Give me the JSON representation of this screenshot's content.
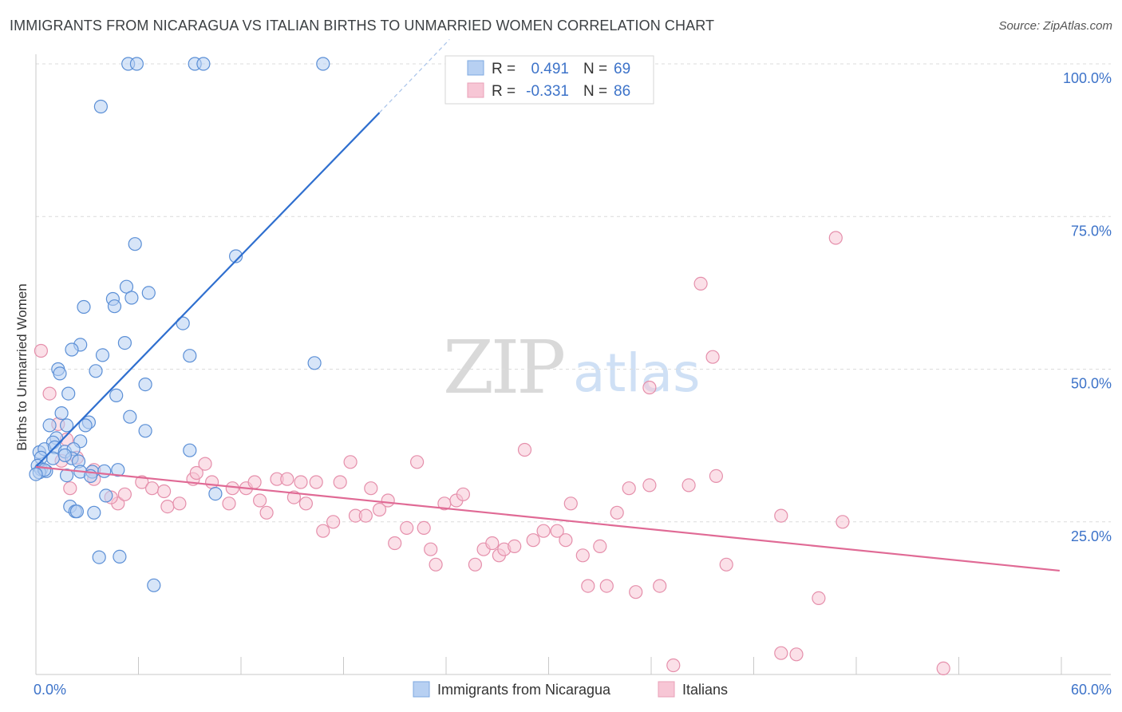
{
  "header": {
    "title": "IMMIGRANTS FROM NICARAGUA VS ITALIAN BIRTHS TO UNMARRIED WOMEN CORRELATION CHART",
    "source": "Source: ZipAtlas.com"
  },
  "watermark": {
    "zip": "ZIP",
    "atlas": "atlas"
  },
  "colors": {
    "blue_fill": "#b7d0f2",
    "blue_stroke": "#5b8fd6",
    "blue_line": "#2f6fcf",
    "pink_fill": "#f7c6d5",
    "pink_stroke": "#e58fab",
    "pink_line": "#e06a95",
    "tick_text": "#3d73c9",
    "grid": "#dcdcdc"
  },
  "chart_data": {
    "type": "scatter",
    "title": "IMMIGRANTS FROM NICARAGUA VS ITALIAN BIRTHS TO UNMARRIED WOMEN CORRELATION CHART",
    "xlabel": "",
    "ylabel": "Births to Unmarried Women",
    "xlim": [
      0,
      60
    ],
    "ylim": [
      0,
      105
    ],
    "x_tick_labels": [
      "0.0%",
      "60.0%"
    ],
    "y_ticks": [
      25,
      50,
      75,
      100
    ],
    "y_tick_labels": [
      "25.0%",
      "50.0%",
      "75.0%",
      "100.0%"
    ],
    "grid": true,
    "legend_position": "top-center",
    "legend": [
      {
        "r_label": "R =",
        "r_value": "0.491",
        "n_label": "N =",
        "n_value": "69"
      },
      {
        "r_label": "R =",
        "r_value": "-0.331",
        "n_label": "N =",
        "n_value": "86"
      }
    ],
    "bottom_legend": [
      "Immigrants from Nicaragua",
      "Italians"
    ],
    "series": [
      {
        "name": "Immigrants from Nicaragua",
        "points": [
          [
            5.4,
            100
          ],
          [
            5.9,
            100
          ],
          [
            9.3,
            100
          ],
          [
            9.8,
            100
          ],
          [
            16.8,
            100
          ],
          [
            3.8,
            93
          ],
          [
            5.8,
            70.5
          ],
          [
            11.7,
            68.5
          ],
          [
            5.3,
            63.5
          ],
          [
            6.6,
            62.5
          ],
          [
            4.5,
            61.5
          ],
          [
            5.6,
            61.7
          ],
          [
            2.8,
            60.2
          ],
          [
            4.6,
            60.3
          ],
          [
            8.6,
            57.5
          ],
          [
            2.6,
            54
          ],
          [
            5.2,
            54.3
          ],
          [
            2.1,
            53.2
          ],
          [
            3.9,
            52.3
          ],
          [
            9.0,
            52.2
          ],
          [
            16.3,
            51
          ],
          [
            1.3,
            50
          ],
          [
            1.4,
            49.3
          ],
          [
            3.5,
            49.7
          ],
          [
            6.4,
            47.5
          ],
          [
            1.9,
            46
          ],
          [
            4.7,
            45.7
          ],
          [
            1.5,
            42.8
          ],
          [
            5.5,
            42.2
          ],
          [
            3.1,
            41.3
          ],
          [
            1.8,
            40.8
          ],
          [
            2.9,
            40.8
          ],
          [
            0.8,
            40.8
          ],
          [
            6.4,
            39.9
          ],
          [
            1.2,
            38.7
          ],
          [
            1.0,
            38
          ],
          [
            2.6,
            38.2
          ],
          [
            0.2,
            36.4
          ],
          [
            0.5,
            36.9
          ],
          [
            1.1,
            37.2
          ],
          [
            1.7,
            36.5
          ],
          [
            2.2,
            36.9
          ],
          [
            9.0,
            36.7
          ],
          [
            0.3,
            35.5
          ],
          [
            1.0,
            35.4
          ],
          [
            2.1,
            35.4
          ],
          [
            2.5,
            34.9
          ],
          [
            1.7,
            35.9
          ],
          [
            0.1,
            34.2
          ],
          [
            0.3,
            33.6
          ],
          [
            0.6,
            33.3
          ],
          [
            0.2,
            33.1
          ],
          [
            0.5,
            33.5
          ],
          [
            4.8,
            33.5
          ],
          [
            2.6,
            33.2
          ],
          [
            3.3,
            33.2
          ],
          [
            4.0,
            33.3
          ],
          [
            0,
            32.8
          ],
          [
            1.8,
            32.6
          ],
          [
            3.2,
            32.5
          ],
          [
            10.5,
            29.6
          ],
          [
            4.1,
            29.3
          ],
          [
            2.0,
            27.5
          ],
          [
            2.3,
            26.7
          ],
          [
            2.4,
            26.7
          ],
          [
            3.4,
            26.5
          ],
          [
            3.7,
            19.2
          ],
          [
            4.9,
            19.3
          ],
          [
            6.9,
            14.6
          ]
        ]
      },
      {
        "name": "Italians",
        "points": [
          [
            46.8,
            71.5
          ],
          [
            38.9,
            64
          ],
          [
            39.6,
            52
          ],
          [
            35.9,
            47
          ],
          [
            0.3,
            53
          ],
          [
            0.8,
            46
          ],
          [
            1.3,
            41
          ],
          [
            1.8,
            38.5
          ],
          [
            2.4,
            35.5
          ],
          [
            3.4,
            33.5
          ],
          [
            3.4,
            32
          ],
          [
            4.8,
            28
          ],
          [
            4.4,
            29
          ],
          [
            5.2,
            29.5
          ],
          [
            6.2,
            31.5
          ],
          [
            6.8,
            30.5
          ],
          [
            7.7,
            27.5
          ],
          [
            8.4,
            28
          ],
          [
            9.2,
            32
          ],
          [
            9.4,
            33
          ],
          [
            9.9,
            34.5
          ],
          [
            10.3,
            31.5
          ],
          [
            11.3,
            28
          ],
          [
            11.5,
            30.5
          ],
          [
            12.3,
            30.5
          ],
          [
            12.8,
            31.5
          ],
          [
            13.1,
            28.5
          ],
          [
            13.5,
            26.5
          ],
          [
            14.1,
            32
          ],
          [
            14.7,
            32
          ],
          [
            15.1,
            29
          ],
          [
            15.5,
            31.5
          ],
          [
            15.8,
            28
          ],
          [
            16.4,
            31.5
          ],
          [
            16.8,
            23.5
          ],
          [
            17.4,
            25
          ],
          [
            17.8,
            31.5
          ],
          [
            18.4,
            34.8
          ],
          [
            18.7,
            26
          ],
          [
            19.3,
            26
          ],
          [
            19.6,
            30.5
          ],
          [
            20.1,
            27
          ],
          [
            20.6,
            28.5
          ],
          [
            21.0,
            21.5
          ],
          [
            21.7,
            24
          ],
          [
            22.3,
            34.8
          ],
          [
            22.7,
            24
          ],
          [
            23.1,
            20.5
          ],
          [
            23.4,
            18
          ],
          [
            23.9,
            28
          ],
          [
            24.6,
            28.5
          ],
          [
            25.0,
            29.5
          ],
          [
            25.7,
            18
          ],
          [
            26.2,
            20.5
          ],
          [
            26.7,
            21.5
          ],
          [
            27.1,
            19.5
          ],
          [
            27.4,
            20.5
          ],
          [
            28.0,
            21
          ],
          [
            28.6,
            36.8
          ],
          [
            29.1,
            22
          ],
          [
            29.7,
            23.5
          ],
          [
            30.5,
            23.5
          ],
          [
            31.0,
            22
          ],
          [
            31.3,
            28
          ],
          [
            32.0,
            19.5
          ],
          [
            32.3,
            14.5
          ],
          [
            33.0,
            21
          ],
          [
            33.4,
            14.5
          ],
          [
            34.0,
            26.5
          ],
          [
            34.7,
            30.5
          ],
          [
            35.1,
            13.5
          ],
          [
            35.9,
            31
          ],
          [
            36.5,
            14.5
          ],
          [
            37.3,
            1.5
          ],
          [
            38.2,
            31
          ],
          [
            39.8,
            32.5
          ],
          [
            40.4,
            18
          ],
          [
            43.6,
            26
          ],
          [
            43.6,
            3.5
          ],
          [
            44.5,
            3.3
          ],
          [
            45.8,
            12.5
          ],
          [
            47.2,
            25
          ],
          [
            53.1,
            1
          ],
          [
            7.5,
            30
          ],
          [
            2.0,
            30.5
          ],
          [
            1.5,
            35
          ]
        ]
      }
    ],
    "trend_lines": [
      {
        "series": "Immigrants from Nicaragua",
        "x": [
          0,
          20.1
        ],
        "y": [
          34,
          92
        ],
        "dashed_extension_x": [
          20.1,
          24.2
        ],
        "dashed_extension_y": [
          92,
          104
        ]
      },
      {
        "series": "Italians",
        "x": [
          0,
          59.9
        ],
        "y": [
          34,
          17
        ]
      }
    ]
  }
}
